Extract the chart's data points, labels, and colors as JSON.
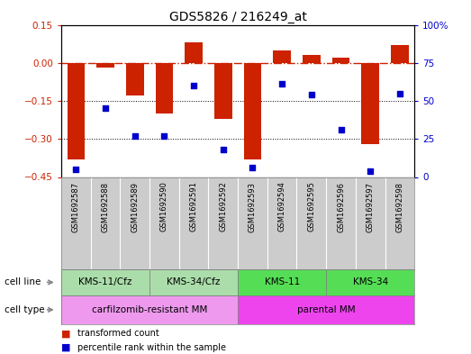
{
  "title": "GDS5826 / 216249_at",
  "samples": [
    "GSM1692587",
    "GSM1692588",
    "GSM1692589",
    "GSM1692590",
    "GSM1692591",
    "GSM1692592",
    "GSM1692593",
    "GSM1692594",
    "GSM1692595",
    "GSM1692596",
    "GSM1692597",
    "GSM1692598"
  ],
  "transformed_count": [
    -0.38,
    -0.02,
    -0.13,
    -0.2,
    0.08,
    -0.22,
    -0.38,
    0.05,
    0.03,
    0.02,
    -0.32,
    0.07
  ],
  "percentile_rank": [
    5,
    45,
    27,
    27,
    60,
    18,
    6,
    61,
    54,
    31,
    4,
    55
  ],
  "cell_line_groups": [
    {
      "label": "KMS-11/Cfz",
      "start": 0,
      "end": 3
    },
    {
      "label": "KMS-34/Cfz",
      "start": 3,
      "end": 6
    },
    {
      "label": "KMS-11",
      "start": 6,
      "end": 9
    },
    {
      "label": "KMS-34",
      "start": 9,
      "end": 12
    }
  ],
  "cell_type_groups": [
    {
      "label": "carfilzomib-resistant MM",
      "start": 0,
      "end": 6
    },
    {
      "label": "parental MM",
      "start": 6,
      "end": 12
    }
  ],
  "ylim_left": [
    -0.45,
    0.15
  ],
  "ylim_right": [
    0,
    100
  ],
  "yticks_left": [
    0.15,
    0.0,
    -0.15,
    -0.3,
    -0.45
  ],
  "yticks_right": [
    100,
    75,
    50,
    25,
    0
  ],
  "bar_color": "#CC2200",
  "dot_color": "#0000CC",
  "hline_color": "#CC2200",
  "grid_color": "#000000",
  "background_color": "#ffffff",
  "cell_line_light_color": "#AADDAA",
  "cell_line_dark_color": "#55DD55",
  "cell_type_color1": "#EE99EE",
  "cell_type_color2": "#EE44EE",
  "sample_bg_color": "#CCCCCC",
  "cell_line_label": "cell line",
  "cell_type_label": "cell type",
  "legend_bar_label": "transformed count",
  "legend_dot_label": "percentile rank within the sample"
}
